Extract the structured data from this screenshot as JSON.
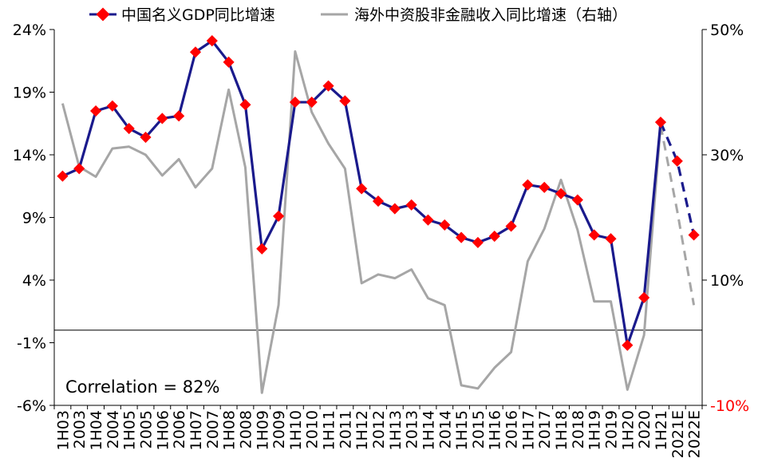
{
  "chart_data": {
    "type": "line",
    "categories": [
      "1H03",
      "2003",
      "1H04",
      "2004",
      "1H05",
      "2005",
      "1H06",
      "2006",
      "1H07",
      "2007",
      "1H08",
      "2008",
      "1H09",
      "2009",
      "1H10",
      "2010",
      "1H11",
      "2011",
      "1H12",
      "2012",
      "1H13",
      "2013",
      "1H14",
      "2014",
      "1H15",
      "2015",
      "1H16",
      "2016",
      "1H17",
      "2017",
      "1H18",
      "2018",
      "1H19",
      "2019",
      "1H20",
      "2020",
      "1H21",
      "2021E",
      "2022E"
    ],
    "series": [
      {
        "name": "中国名义GDP同比增速",
        "axis": "left",
        "color": "#1a1a8c",
        "marker_color": "#ff0000",
        "values": [
          12.3,
          12.9,
          17.5,
          17.9,
          16.1,
          15.4,
          16.9,
          17.1,
          22.2,
          23.1,
          21.4,
          18.0,
          6.5,
          9.1,
          18.2,
          18.2,
          19.5,
          18.3,
          11.3,
          10.3,
          9.7,
          10.0,
          8.8,
          8.4,
          7.4,
          7.0,
          7.5,
          8.3,
          11.6,
          11.4,
          10.9,
          10.4,
          7.6,
          7.3,
          -1.2,
          2.6,
          16.6,
          13.5,
          7.6
        ],
        "estimated_from_index": 36
      },
      {
        "name": "海外中资股非金融收入同比增速（右轴）",
        "axis": "right",
        "color": "#a6a6a6",
        "values": [
          38.2,
          28.1,
          26.5,
          31.0,
          31.3,
          30.0,
          26.7,
          29.3,
          24.8,
          27.8,
          40.4,
          28.0,
          -8.0,
          6.0,
          46.5,
          36.8,
          31.8,
          27.8,
          9.5,
          10.9,
          10.3,
          11.7,
          7.1,
          6.0,
          -6.8,
          -7.3,
          -4.0,
          -1.5,
          13.0,
          18.2,
          26.0,
          18.0,
          6.6,
          6.6,
          -7.5,
          1.2,
          34.7,
          21.0,
          6.0
        ],
        "estimated_from_index": 36
      }
    ],
    "left_axis": {
      "min": -6,
      "max": 24,
      "ticks": [
        "24%",
        "19%",
        "14%",
        "9%",
        "4%",
        "-1%",
        "-6%"
      ],
      "tick_values": [
        24,
        19,
        14,
        9,
        4,
        -1,
        -6
      ]
    },
    "right_axis": {
      "min": -10,
      "max": 50,
      "ticks": [
        "50%",
        "30%",
        "10%",
        "-10%"
      ],
      "tick_values": [
        50,
        30,
        10,
        -10
      ],
      "negative_tick_color": "#ff0000"
    },
    "legend_position": "top",
    "annotation": "Correlation = 82%",
    "zero_line": true,
    "grid": false
  }
}
